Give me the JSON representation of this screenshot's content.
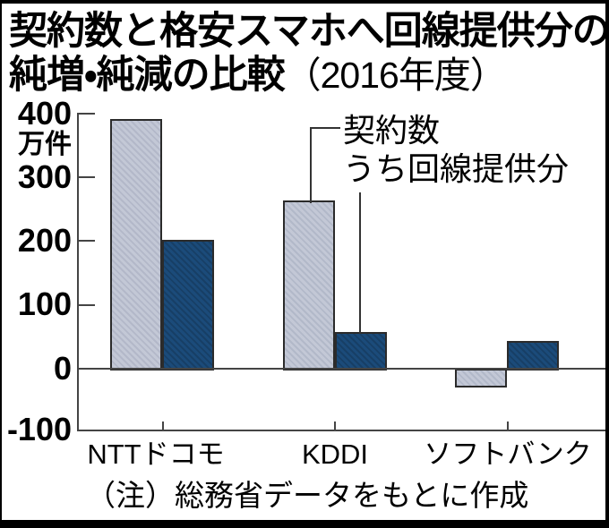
{
  "title": {
    "line1": "契約数と格安スマホへ回線提供分の",
    "line2_main": "純増・純減の比較",
    "line2_paren": "（2016年度）"
  },
  "y_axis": {
    "unit": "万件",
    "ticks": [
      "400",
      "300",
      "200",
      "100",
      "0",
      "-100"
    ]
  },
  "legend": {
    "series1": "契約数",
    "series2": "うち回線提供分"
  },
  "note": "（注）総務省データをもとに作成",
  "colors": {
    "series1_fill": "#c3c8d6",
    "series2_fill": "#1b4b7a",
    "bar_border": "#2b2b2b",
    "axis": "#444444",
    "frame": "#000000",
    "background": "#ffffff",
    "text": "#000000"
  },
  "chart_data": {
    "type": "bar",
    "title": "契約数と格安スマホへ回線提供分の純増・純減の比較（2016年度）",
    "categories": [
      "NTTドコモ",
      "KDDI",
      "ソフトバンク"
    ],
    "series": [
      {
        "name": "契約数",
        "values": [
          390,
          263,
          -27
        ]
      },
      {
        "name": "うち回線提供分",
        "values": [
          202,
          57,
          44
        ]
      }
    ],
    "ylabel": "万件",
    "ylim": [
      -100,
      400
    ],
    "yticks": [
      400,
      300,
      200,
      100,
      0,
      -100
    ],
    "grid": false,
    "legend_position": "inside-top-right",
    "note": "（注）総務省データをもとに作成"
  }
}
